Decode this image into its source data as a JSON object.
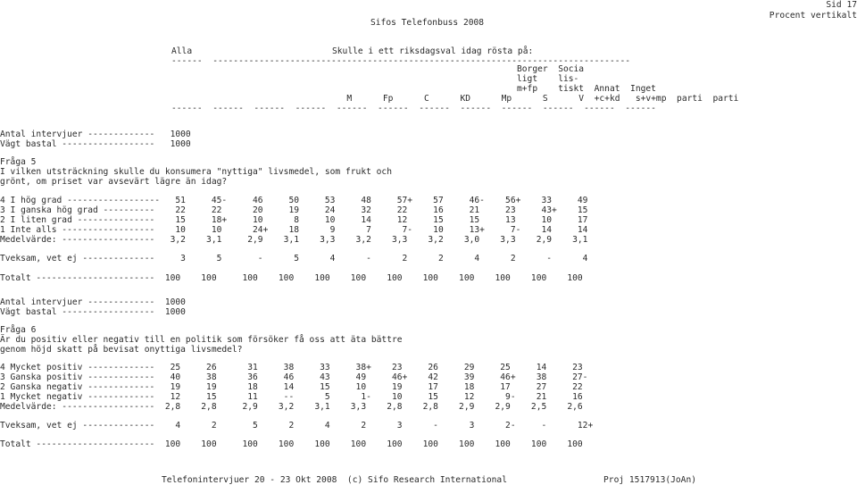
{
  "header": {
    "page": "Sid 17",
    "subtitle": "Procent vertikalt",
    "title": "Sifos Telefonbuss 2008"
  },
  "table_header": {
    "all_label": "Alla",
    "question_label": "Skulle i ett riksdagsval idag rösta på:",
    "rule_top": "------  ---------------------------------------------------------------------------------",
    "col_labels_line1": "                                                                   Borger  Socia",
    "col_labels_line2": "                                                                   ligt    lis-",
    "col_labels_line3": "                                                                   m+fp    tiskt  Annat  Inget",
    "col_labels_line4": "                                  M      Fp      C      KD      Mp      S      V  +c+kd   s+v+mp  parti  parti",
    "rule_bottom": "------  ------  ------  ------  ------  ------  ------  ------  ------  ------  ------  ------"
  },
  "block1": {
    "lines": [
      "Antal intervjuer -------------   1000",
      "Vägt bastal ------------------   1000",
      "",
      "Fråga 5",
      "I vilken utsträckning skulle du konsumera \"nyttiga\" livsmedel, som frukt och",
      "grönt, om priset var avsevärt lägre än idag?",
      "",
      "4 I hög grad ------------------   51     45-     46     50     53     48     57+    57     46-    56+    33     49",
      "3 I ganska hög grad ----------    22     22      20     19     24     32     22     16     21     23     43+    15",
      "2 I liten grad ---------------    15     18+     10      8     10     14     12     15     15     13     10     17",
      "1 Inte alls ------------------    10     10      24+    18      9      7      7-    10     13+     7-    14     14",
      "Medelvärde: ------------------   3,2    3,1     2,9    3,1    3,3    3,2    3,3    3,2    3,0    3,3    2,9    3,1",
      "",
      "Tveksam, vet ej --------------     3      5       -      5      4      -      2      2      4      2      -      4",
      "",
      "Totalt -----------------------  100    100     100    100    100    100    100    100    100    100    100    100"
    ]
  },
  "block2": {
    "lines": [
      "Antal intervjuer -------------  1000",
      "Vägt bastal ------------------  1000",
      "",
      "Fråga 6",
      "Är du positiv eller negativ till en politik som försöker få oss att äta bättre",
      "genom höjd skatt på bevisat onyttiga livsmedel?",
      "",
      "4 Mycket positiv -------------   25     26      31     38     33     38+    23     26     29     25     14     23",
      "3 Ganska positiv -------------   40     38      36     46     43     49     46+    42     39     46+    38     27-",
      "2 Ganska negativ -------------   19     19      18     14     15     10     19     17     18     17     27     22",
      "1 Mycket negativ -------------   12     15      11     --      5      1-    10     15     12      9-    21     16",
      "Medelvärde: ------------------  2,8    2,8     2,9    3,2    3,1    3,3    2,8    2,8    2,9    2,9    2,5    2,6",
      "",
      "Tveksam, vet ej --------------    4      2       5      2      4      2      3      -      3      2-     -      12+",
      "",
      "Totalt -----------------------  100    100     100    100    100    100    100    100    100    100    100    100"
    ]
  },
  "footer": {
    "left": "Telefonintervjuer 20 - 23 Okt 2008  (c) Sifo Research International",
    "right": "Proj 1517913(JoAn)"
  }
}
